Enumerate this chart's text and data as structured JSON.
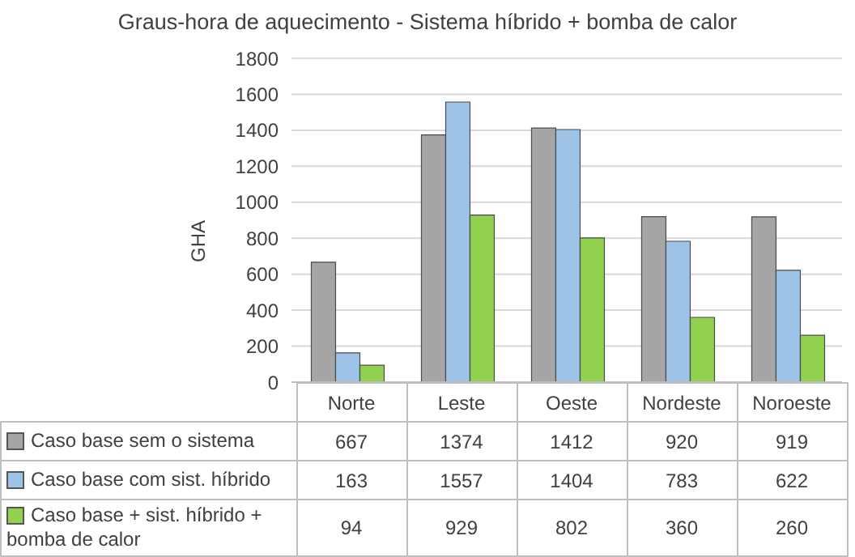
{
  "chart_data": {
    "type": "bar",
    "title": "Graus-hora de aquecimento - Sistema híbrido + bomba de calor",
    "ylabel": "GHA",
    "categories": [
      "Norte",
      "Leste",
      "Oeste",
      "Nordeste",
      "Noroeste"
    ],
    "series": [
      {
        "name": "Caso base sem o sistema",
        "color": "#a5a5a5",
        "values": [
          667,
          1374,
          1412,
          920,
          919
        ]
      },
      {
        "name": "Caso base com sist. híbrido",
        "color": "#9dc3e6",
        "values": [
          163,
          1557,
          1404,
          783,
          622
        ]
      },
      {
        "name": "Caso base + sist. híbrido + bomba de calor",
        "color": "#92d050",
        "values": [
          94,
          929,
          802,
          360,
          260
        ]
      }
    ],
    "ylim": [
      0,
      1800
    ],
    "yticks": [
      0,
      200,
      400,
      600,
      800,
      1000,
      1200,
      1400,
      1600,
      1800
    ],
    "grid": "y",
    "legend": "bottom",
    "data_labels": true
  }
}
